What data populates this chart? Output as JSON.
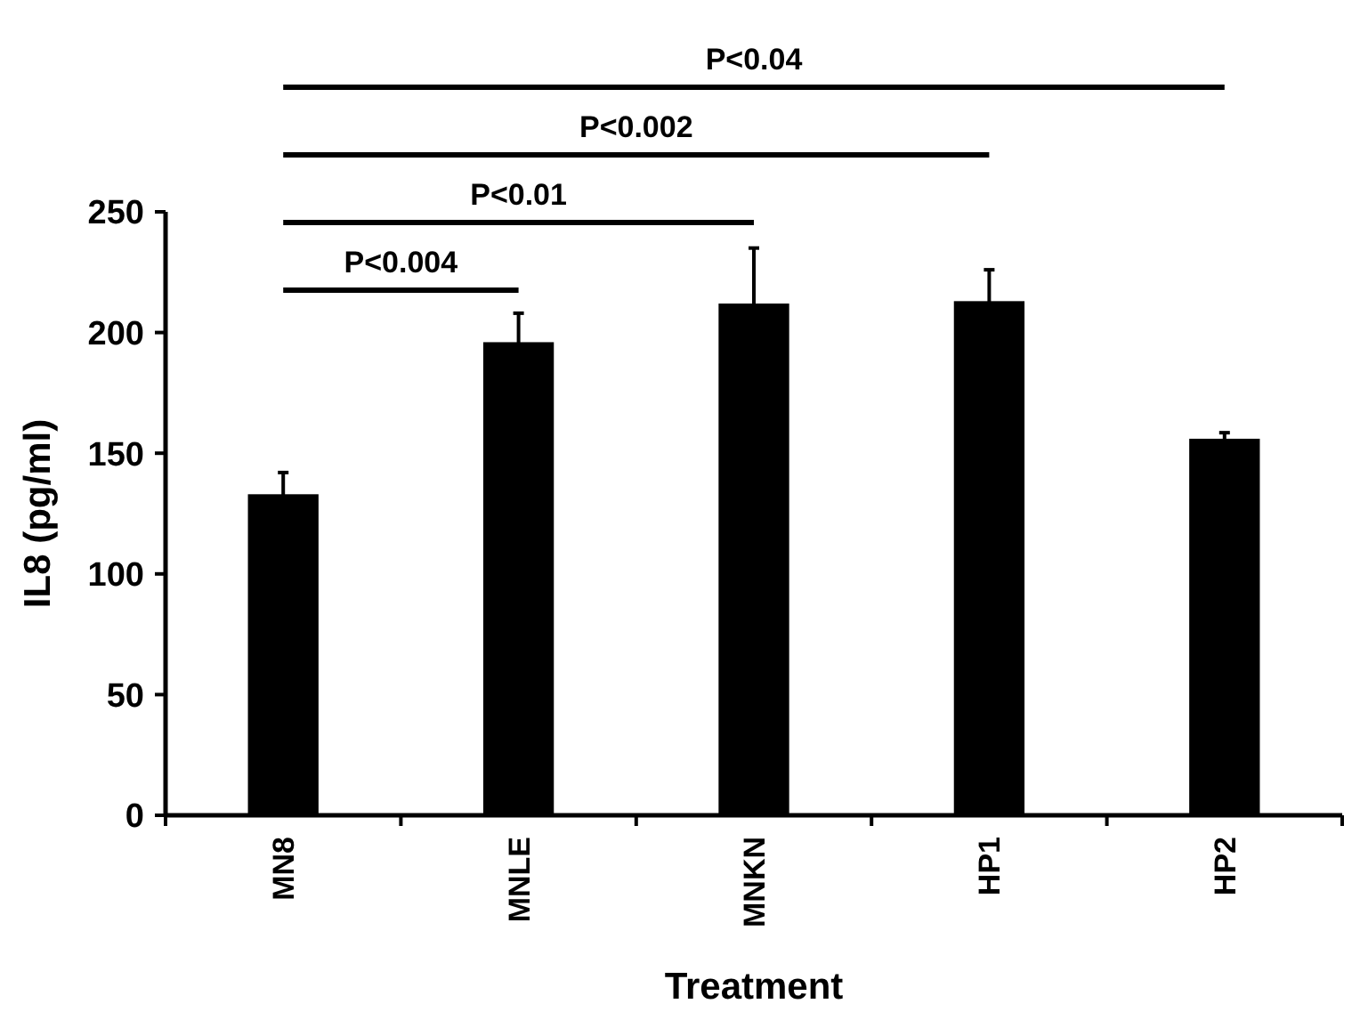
{
  "chart_data": {
    "type": "bar",
    "xlabel": "Treatment",
    "ylabel": "IL8 (pg/ml)",
    "categories": [
      "MN8",
      "MNLE",
      "MNKN",
      "HP1",
      "HP2"
    ],
    "values": [
      133,
      196,
      212,
      213,
      156
    ],
    "errors": [
      9,
      12,
      23,
      13,
      2.5
    ],
    "color": "#000000",
    "ylim": [
      0,
      250
    ],
    "yticks": [
      0,
      50,
      100,
      150,
      200,
      250
    ],
    "grid": false,
    "annotations": [
      "P<0.004",
      "P<0.01",
      "P<0.002",
      "P<0.04"
    ]
  }
}
